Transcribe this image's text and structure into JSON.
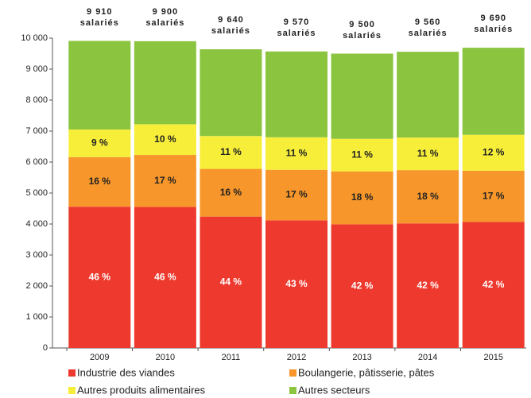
{
  "chart_data": {
    "type": "stacked_bar",
    "categories": [
      "2009",
      "2010",
      "2011",
      "2012",
      "2013",
      "2014",
      "2015"
    ],
    "series": [
      {
        "name": "Industrie des viandes",
        "color": "#ee3a2e",
        "values": [
          4560,
          4550,
          4240,
          4120,
          3990,
          4020,
          4070
        ],
        "shares": [
          46,
          46,
          44,
          43,
          42,
          42,
          42
        ],
        "share_labels": [
          "46 %",
          "46 %",
          "44 %",
          "43 %",
          "42 %",
          "42 %",
          "42 %"
        ]
      },
      {
        "name": "Boulangerie, pâtisserie, pâtes",
        "color": "#f7962a",
        "values": [
          1600,
          1680,
          1540,
          1630,
          1710,
          1720,
          1650
        ],
        "shares": [
          16,
          17,
          16,
          17,
          18,
          18,
          17
        ],
        "share_labels": [
          "16 %",
          "17 %",
          "16 %",
          "17 %",
          "18 %",
          "18 %",
          "17 %"
        ]
      },
      {
        "name": "Autres produits alimentaires",
        "color": "#f7ee3a",
        "values": [
          890,
          990,
          1060,
          1050,
          1050,
          1050,
          1160
        ],
        "shares": [
          9,
          10,
          11,
          11,
          11,
          11,
          12
        ],
        "share_labels": [
          "9 %",
          "10 %",
          "11 %",
          "11 %",
          "11 %",
          "11 %",
          "12 %"
        ]
      },
      {
        "name": "Autres secteurs",
        "color": "#8bc43f",
        "values": [
          2860,
          2680,
          2800,
          2770,
          2750,
          2770,
          2810
        ]
      }
    ],
    "totals": [
      9910,
      9900,
      9640,
      9570,
      9500,
      9560,
      9690
    ],
    "total_labels": [
      "9 910 salariés",
      "9 900 salariés",
      "9 640 salariés",
      "9 570 salariés",
      "9 500 salariés",
      "9 560 salariés",
      "9 690 salariés"
    ],
    "ylim": [
      0,
      10000
    ],
    "yticks": [
      0,
      {
        "value": 1000,
        "label": "1 000"
      },
      {
        "value": 2000,
        "label": "2 000"
      },
      {
        "value": 3000,
        "label": "3 000"
      },
      {
        "value": 4000,
        "label": "4 000"
      },
      {
        "value": 5000,
        "label": "5 000"
      },
      {
        "value": 6000,
        "label": "6 000"
      },
      {
        "value": 7000,
        "label": "7 000"
      },
      {
        "value": 8000,
        "label": "8 000"
      },
      {
        "value": 9000,
        "label": "9 000"
      },
      {
        "value": 10000,
        "label": "10 000"
      }
    ],
    "legend": "bottom"
  }
}
